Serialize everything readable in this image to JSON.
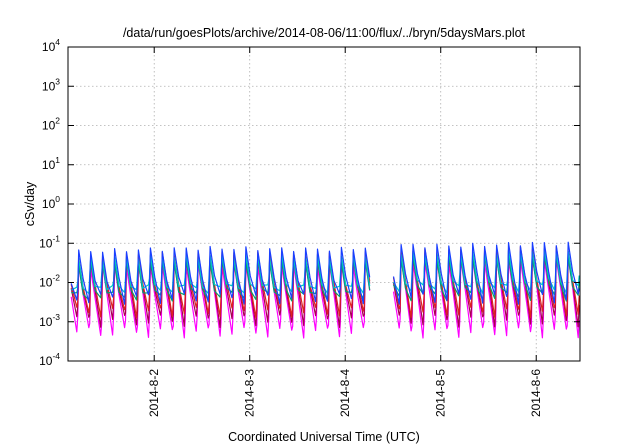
{
  "chart_data": {
    "type": "line",
    "title": "/data/run/goesPlots/archive/2014-08-06/11:00/flux/../bryn/5daysMars.plot",
    "xlabel": "Coordinated Universal Time (UTC)",
    "ylabel": "cSv/day",
    "yscale": "log",
    "ylim": [
      0.0001,
      10000
    ],
    "xlim": [
      "2014-08-01 02:20",
      "2014-08-06 11:00"
    ],
    "grid": true,
    "legend": "none",
    "x_ticks": [
      {
        "value": "2014-08-02",
        "label": "2014-8-2"
      },
      {
        "value": "2014-08-03",
        "label": "2014-8-3"
      },
      {
        "value": "2014-08-04",
        "label": "2014-8-4"
      },
      {
        "value": "2014-08-05",
        "label": "2014-8-5"
      },
      {
        "value": "2014-08-06",
        "label": "2014-8-6"
      }
    ],
    "y_ticks": [
      {
        "value": 0.0001,
        "base": "10",
        "exp": "-4"
      },
      {
        "value": 0.001,
        "base": "10",
        "exp": "-3"
      },
      {
        "value": 0.01,
        "base": "10",
        "exp": "-2"
      },
      {
        "value": 0.1,
        "base": "10",
        "exp": "-1"
      },
      {
        "value": 1,
        "base": "10",
        "exp": "0"
      },
      {
        "value": 10,
        "base": "10",
        "exp": "1"
      },
      {
        "value": 100,
        "base": "10",
        "exp": "2"
      },
      {
        "value": 1000,
        "base": "10",
        "exp": "3"
      },
      {
        "value": 10000,
        "base": "10",
        "exp": "4"
      }
    ],
    "cycle_hours": 3.0,
    "series": [
      {
        "color": "#ff00ff",
        "peak_scale": 0.4,
        "trough_scale": 0.00055,
        "trough_wobble": 0.3
      },
      {
        "color": "#a80050",
        "peak_scale": 0.6,
        "trough_scale": 0.0011,
        "trough_wobble": 0.35
      },
      {
        "color": "#e02020",
        "peak_scale": 0.75,
        "trough_scale": 0.0018,
        "trough_wobble": 0.3
      },
      {
        "color": "#00a070",
        "peak_scale": 0.5,
        "trough_scale": 0.0045,
        "trough_wobble": 0.25
      },
      {
        "color": "#00c8c8",
        "peak_scale": 0.65,
        "trough_scale": 0.007,
        "trough_wobble": 0.25
      },
      {
        "color": "#1a3fff",
        "peak_scale": 1.0,
        "trough_scale": 0.004,
        "trough_wobble": 0.3
      }
    ],
    "peak_envelope": {
      "x": [
        "2014-08-01 02:20",
        "2014-08-02 12:00",
        "2014-08-03 12:00",
        "2014-08-04 00:00",
        "2014-08-04 12:00",
        "2014-08-05 00:00",
        "2014-08-05 12:00",
        "2014-08-06 00:00",
        "2014-08-06 11:00"
      ],
      "y": [
        0.06,
        0.075,
        0.07,
        0.07,
        0.09,
        0.085,
        0.09,
        0.1,
        0.095
      ]
    },
    "gap": {
      "start": "2014-08-04 06:30",
      "end": "2014-08-04 12:00"
    }
  }
}
